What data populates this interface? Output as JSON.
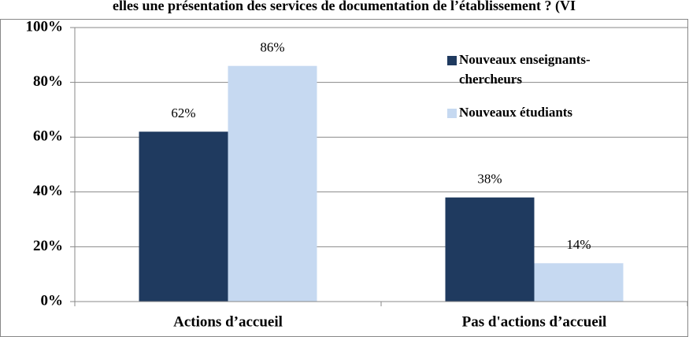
{
  "chart_data": {
    "type": "bar",
    "title": "elles une présentation des services de documentation de l’établissement ? (VI",
    "categories": [
      "Actions d’accueil",
      "Pas d'actions d’accueil"
    ],
    "series": [
      {
        "name": "Nouveaux enseignants-chercheurs",
        "color": "#1f3a5f",
        "values": [
          62,
          38
        ],
        "value_labels": [
          "62%",
          "38%"
        ]
      },
      {
        "name": "Nouveaux étudiants",
        "color": "#c6d9f1",
        "values": [
          86,
          14
        ],
        "value_labels": [
          "86%",
          "14%"
        ]
      }
    ],
    "ylim": [
      0,
      100
    ],
    "yticks": [
      {
        "value": 0,
        "label": "0%"
      },
      {
        "value": 20,
        "label": "20%"
      },
      {
        "value": 40,
        "label": "40%"
      },
      {
        "value": 60,
        "label": "60%"
      },
      {
        "value": 80,
        "label": "80%"
      },
      {
        "value": 100,
        "label": "100%"
      }
    ],
    "grid": true,
    "legend": "top-right"
  }
}
